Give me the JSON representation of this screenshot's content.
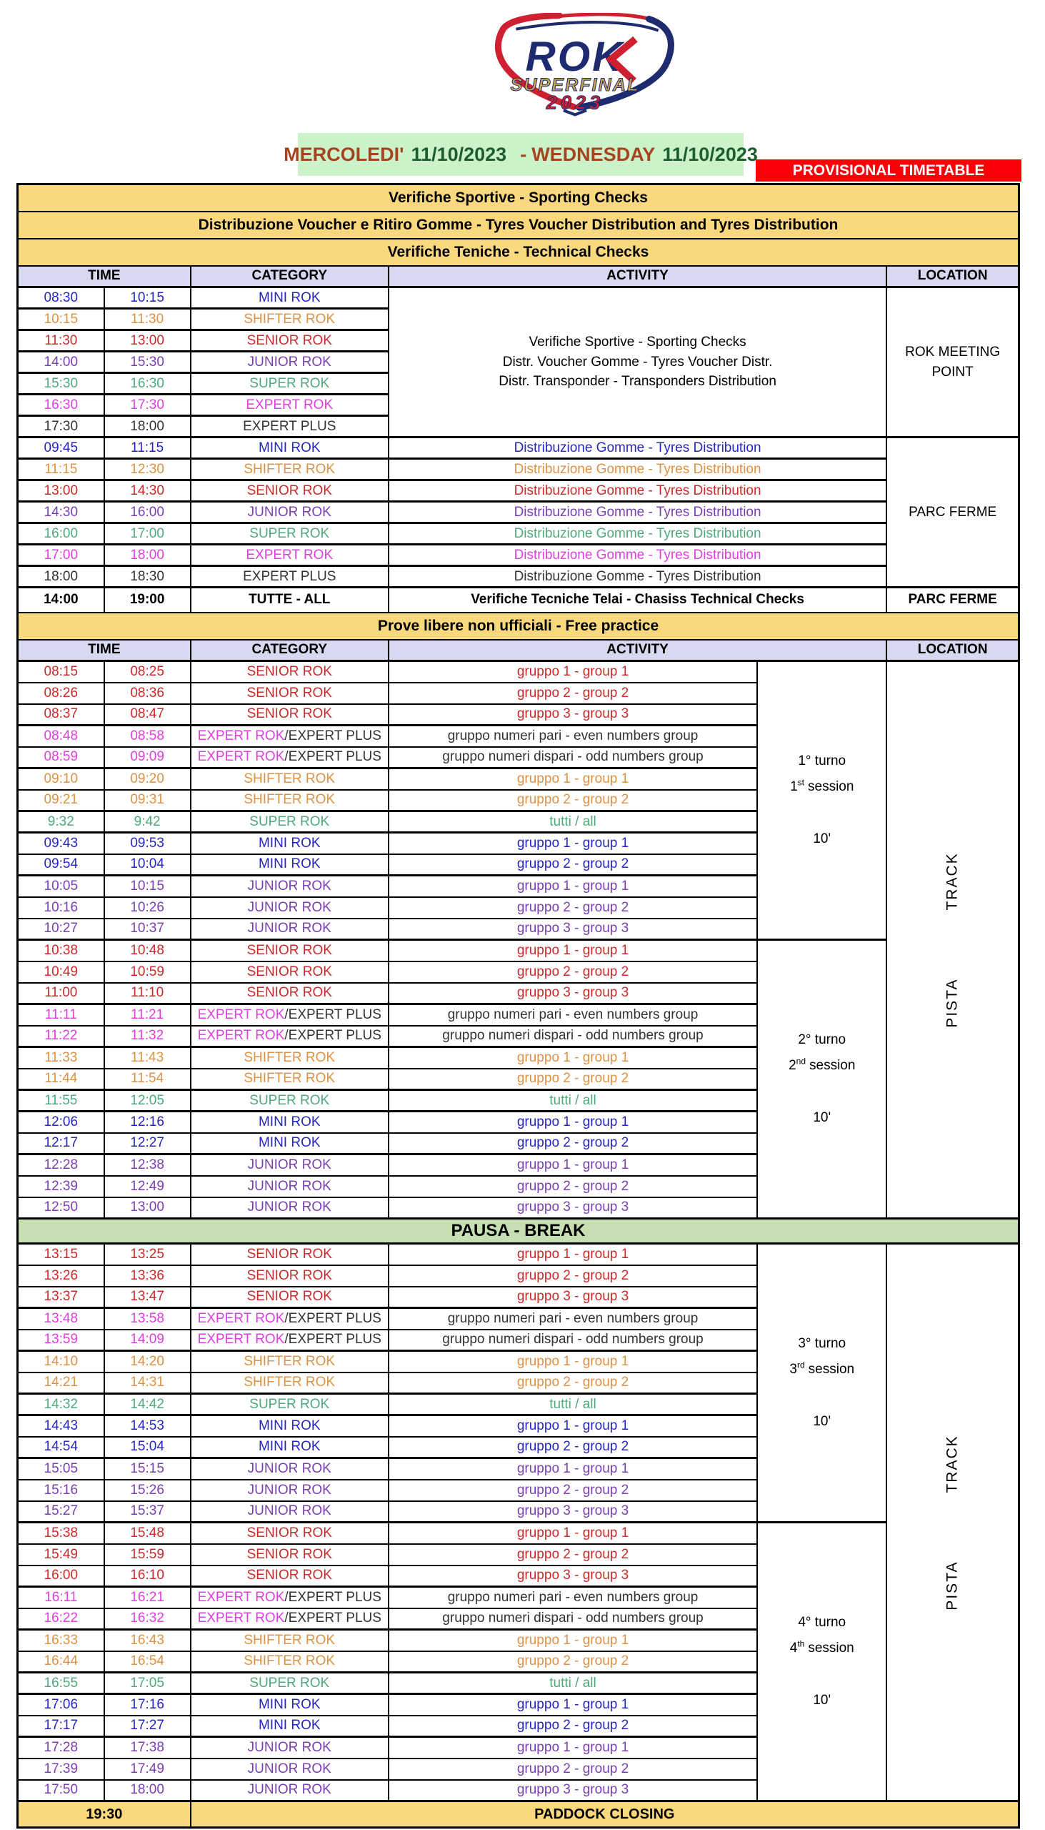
{
  "logo": {
    "rok": "ROK",
    "superfinal": "SUPERFINAL",
    "year": "2023"
  },
  "banner": {
    "it_day": "MERCOLEDI'",
    "it_date": "11/10/2023",
    "dash": "-",
    "en_day": "WEDNESDAY",
    "en_date": "11/10/2023",
    "provisional": "PROVISIONAL TIMETABLE"
  },
  "columns": {
    "time": "TIME",
    "category": "CATEGORY",
    "activity": "ACTIVITY",
    "location": "LOCATION"
  },
  "section_bars": [
    "Verifiche Sportive - Sporting Checks",
    "Distribuzione Voucher e Ritiro Gomme - Tyres Voucher Distribution and Tyres Distribution",
    "Verifiche Teniche - Technical Checks"
  ],
  "checks": {
    "rows": [
      {
        "start": "08:30",
        "end": "10:15",
        "category": "MINI ROK",
        "color": "mini"
      },
      {
        "start": "10:15",
        "end": "11:30",
        "category": "SHIFTER ROK",
        "color": "shifter"
      },
      {
        "start": "11:30",
        "end": "13:00",
        "category": "SENIOR ROK",
        "color": "senior"
      },
      {
        "start": "14:00",
        "end": "15:30",
        "category": "JUNIOR ROK",
        "color": "junior"
      },
      {
        "start": "15:30",
        "end": "16:30",
        "category": "SUPER ROK",
        "color": "super"
      },
      {
        "start": "16:30",
        "end": "17:30",
        "category": "EXPERT ROK",
        "color": "expert"
      },
      {
        "start": "17:30",
        "end": "18:00",
        "category": "EXPERT PLUS",
        "color": "expert_plus"
      }
    ],
    "activity_lines": [
      "Verifiche Sportive - Sporting Checks",
      "Distr. Voucher Gomme - Tyres Voucher Distr.",
      "Distr. Transponder - Transponders Distribution"
    ],
    "location_lines": [
      "ROK MEETING",
      "POINT"
    ]
  },
  "tyres": {
    "rows": [
      {
        "start": "09:45",
        "end": "11:15",
        "category": "MINI ROK",
        "color": "mini",
        "activity": "Distribuzione Gomme - Tyres Distribution"
      },
      {
        "start": "11:15",
        "end": "12:30",
        "category": "SHIFTER ROK",
        "color": "shifter",
        "activity": "Distribuzione Gomme - Tyres Distribution"
      },
      {
        "start": "13:00",
        "end": "14:30",
        "category": "SENIOR ROK",
        "color": "senior",
        "activity": "Distribuzione Gomme - Tyres Distribution"
      },
      {
        "start": "14:30",
        "end": "16:00",
        "category": "JUNIOR ROK",
        "color": "junior",
        "activity": "Distribuzione Gomme - Tyres Distribution"
      },
      {
        "start": "16:00",
        "end": "17:00",
        "category": "SUPER ROK",
        "color": "super",
        "activity": "Distribuzione Gomme - Tyres Distribution"
      },
      {
        "start": "17:00",
        "end": "18:00",
        "category": "EXPERT ROK",
        "color": "expert",
        "activity": "Distribuzione Gomme - Tyres Distribution"
      },
      {
        "start": "18:00",
        "end": "18:30",
        "category": "EXPERT PLUS",
        "color": "expert_plus",
        "activity": "Distribuzione Gomme - Tyres Distribution"
      }
    ],
    "location": "PARC FERME"
  },
  "all_row": {
    "start": "14:00",
    "end": "19:00",
    "category": "TUTTE - ALL",
    "activity": "Verifiche Tecniche Telai - Chasiss Technical Checks",
    "location": "PARC FERME"
  },
  "free_practice": {
    "header": "Prove libere non ufficiali - Free practice",
    "pausa": "PAUSA - BREAK",
    "track": {
      "pista": "PISTA",
      "track": "TRACK"
    },
    "sessions": [
      {
        "turno": "1° turno",
        "ordinal": "1",
        "suffix": "st",
        "word": "session",
        "duration": "10'",
        "rows": [
          {
            "start": "08:15",
            "end": "08:25",
            "category": "SENIOR ROK",
            "color": "senior",
            "activity": "gruppo 1 - group 1"
          },
          {
            "start": "08:26",
            "end": "08:36",
            "category": "SENIOR ROK",
            "color": "senior",
            "activity": "gruppo 2 - group 2"
          },
          {
            "start": "08:37",
            "end": "08:47",
            "category": "SENIOR ROK",
            "color": "senior",
            "activity": "gruppo 3 - group 3"
          },
          {
            "start": "08:48",
            "end": "08:58",
            "category": "EXPERT ROK",
            "category2": "/EXPERT PLUS",
            "color": "expert",
            "activity": "gruppo numeri pari - even numbers group",
            "activity_color": "expert_plus"
          },
          {
            "start": "08:59",
            "end": "09:09",
            "category": "EXPERT ROK",
            "category2": "/EXPERT PLUS",
            "color": "expert",
            "activity": "gruppo numeri dispari - odd numbers group",
            "activity_color": "expert_plus"
          },
          {
            "start": "09:10",
            "end": "09:20",
            "category": "SHIFTER ROK",
            "color": "shifter",
            "activity": "gruppo 1 - group 1"
          },
          {
            "start": "09:21",
            "end": "09:31",
            "category": "SHIFTER ROK",
            "color": "shifter",
            "activity": "gruppo 2 - group 2"
          },
          {
            "start": "9:32",
            "end": "9:42",
            "category": "SUPER ROK",
            "color": "super",
            "activity": "tutti / all"
          },
          {
            "start": "09:43",
            "end": "09:53",
            "category": "MINI ROK",
            "color": "mini",
            "activity": "gruppo 1 - group 1"
          },
          {
            "start": "09:54",
            "end": "10:04",
            "category": "MINI ROK",
            "color": "mini",
            "activity": "gruppo 2 - group 2"
          },
          {
            "start": "10:05",
            "end": "10:15",
            "category": "JUNIOR ROK",
            "color": "junior",
            "activity": "gruppo 1 - group 1"
          },
          {
            "start": "10:16",
            "end": "10:26",
            "category": "JUNIOR ROK",
            "color": "junior",
            "activity": "gruppo 2 - group 2"
          },
          {
            "start": "10:27",
            "end": "10:37",
            "category": "JUNIOR ROK",
            "color": "junior",
            "activity": "gruppo 3 - group 3"
          }
        ]
      },
      {
        "turno": "2° turno",
        "ordinal": "2",
        "suffix": "nd",
        "word": "session",
        "duration": "10'",
        "rows": [
          {
            "start": "10:38",
            "end": "10:48",
            "category": "SENIOR ROK",
            "color": "senior",
            "activity": "gruppo 1 - group 1"
          },
          {
            "start": "10:49",
            "end": "10:59",
            "category": "SENIOR ROK",
            "color": "senior",
            "activity": "gruppo 2 - group 2"
          },
          {
            "start": "11:00",
            "end": "11:10",
            "category": "SENIOR ROK",
            "color": "senior",
            "activity": "gruppo 3 - group 3"
          },
          {
            "start": "11:11",
            "end": "11:21",
            "category": "EXPERT ROK",
            "category2": "/EXPERT PLUS",
            "color": "expert",
            "activity": "gruppo numeri pari - even numbers group",
            "activity_color": "expert_plus"
          },
          {
            "start": "11:22",
            "end": "11:32",
            "category": "EXPERT ROK",
            "category2": "/EXPERT PLUS",
            "color": "expert",
            "activity": "gruppo numeri dispari - odd numbers group",
            "activity_color": "expert_plus"
          },
          {
            "start": "11:33",
            "end": "11:43",
            "category": "SHIFTER ROK",
            "color": "shifter",
            "activity": "gruppo 1 - group 1"
          },
          {
            "start": "11:44",
            "end": "11:54",
            "category": "SHIFTER ROK",
            "color": "shifter",
            "activity": "gruppo 2 - group 2"
          },
          {
            "start": "11:55",
            "end": "12:05",
            "category": "SUPER ROK",
            "color": "super",
            "activity": "tutti / all"
          },
          {
            "start": "12:06",
            "end": "12:16",
            "category": "MINI ROK",
            "color": "mini",
            "activity": "gruppo 1 - group 1"
          },
          {
            "start": "12:17",
            "end": "12:27",
            "category": "MINI ROK",
            "color": "mini",
            "activity": "gruppo 2 - group 2"
          },
          {
            "start": "12:28",
            "end": "12:38",
            "category": "JUNIOR ROK",
            "color": "junior",
            "activity": "gruppo 1 - group 1"
          },
          {
            "start": "12:39",
            "end": "12:49",
            "category": "JUNIOR ROK",
            "color": "junior",
            "activity": "gruppo 2 - group 2"
          },
          {
            "start": "12:50",
            "end": "13:00",
            "category": "JUNIOR ROK",
            "color": "junior",
            "activity": "gruppo 3 - group 3"
          }
        ]
      },
      {
        "turno": "3° turno",
        "ordinal": "3",
        "suffix": "rd",
        "word": "session",
        "duration": "10'",
        "rows": [
          {
            "start": "13:15",
            "end": "13:25",
            "category": "SENIOR ROK",
            "color": "senior",
            "activity": "gruppo 1 - group 1"
          },
          {
            "start": "13:26",
            "end": "13:36",
            "category": "SENIOR ROK",
            "color": "senior",
            "activity": "gruppo 2 - group 2"
          },
          {
            "start": "13:37",
            "end": "13:47",
            "category": "SENIOR ROK",
            "color": "senior",
            "activity": "gruppo 3 - group 3"
          },
          {
            "start": "13:48",
            "end": "13:58",
            "category": "EXPERT ROK",
            "category2": "/EXPERT PLUS",
            "color": "expert",
            "activity": "gruppo numeri pari - even numbers group",
            "activity_color": "expert_plus"
          },
          {
            "start": "13:59",
            "end": "14:09",
            "category": "EXPERT ROK",
            "category2": "/EXPERT PLUS",
            "color": "expert",
            "activity": "gruppo numeri dispari - odd numbers group",
            "activity_color": "expert_plus"
          },
          {
            "start": "14:10",
            "end": "14:20",
            "category": "SHIFTER ROK",
            "color": "shifter",
            "activity": "gruppo 1 - group 1"
          },
          {
            "start": "14:21",
            "end": "14:31",
            "category": "SHIFTER ROK",
            "color": "shifter",
            "activity": "gruppo 2 - group 2"
          },
          {
            "start": "14:32",
            "end": "14:42",
            "category": "SUPER ROK",
            "color": "super",
            "activity": "tutti / all"
          },
          {
            "start": "14:43",
            "end": "14:53",
            "category": "MINI ROK",
            "color": "mini",
            "activity": "gruppo 1 - group 1"
          },
          {
            "start": "14:54",
            "end": "15:04",
            "category": "MINI ROK",
            "color": "mini",
            "activity": "gruppo 2 - group 2"
          },
          {
            "start": "15:05",
            "end": "15:15",
            "category": "JUNIOR ROK",
            "color": "junior",
            "activity": "gruppo 1 - group 1"
          },
          {
            "start": "15:16",
            "end": "15:26",
            "category": "JUNIOR ROK",
            "color": "junior",
            "activity": "gruppo 2 - group 2"
          },
          {
            "start": "15:27",
            "end": "15:37",
            "category": "JUNIOR ROK",
            "color": "junior",
            "activity": "gruppo 3 - group 3"
          }
        ]
      },
      {
        "turno": "4° turno",
        "ordinal": "4",
        "suffix": "th",
        "word": "session",
        "duration": "10'",
        "rows": [
          {
            "start": "15:38",
            "end": "15:48",
            "category": "SENIOR ROK",
            "color": "senior",
            "activity": "gruppo 1 - group 1"
          },
          {
            "start": "15:49",
            "end": "15:59",
            "category": "SENIOR ROK",
            "color": "senior",
            "activity": "gruppo 2 - group 2"
          },
          {
            "start": "16:00",
            "end": "16:10",
            "category": "SENIOR ROK",
            "color": "senior",
            "activity": "gruppo 3 - group 3"
          },
          {
            "start": "16:11",
            "end": "16:21",
            "category": "EXPERT ROK",
            "category2": "/EXPERT PLUS",
            "color": "expert",
            "activity": "gruppo numeri pari - even numbers group",
            "activity_color": "expert_plus"
          },
          {
            "start": "16:22",
            "end": "16:32",
            "category": "EXPERT ROK",
            "category2": "/EXPERT PLUS",
            "color": "expert",
            "activity": "gruppo numeri dispari - odd numbers group",
            "activity_color": "expert_plus"
          },
          {
            "start": "16:33",
            "end": "16:43",
            "category": "SHIFTER ROK",
            "color": "shifter",
            "activity": "gruppo 1 - group 1"
          },
          {
            "start": "16:44",
            "end": "16:54",
            "category": "SHIFTER ROK",
            "color": "shifter",
            "activity": "gruppo 2 - group 2"
          },
          {
            "start": "16:55",
            "end": "17:05",
            "category": "SUPER ROK",
            "color": "super",
            "activity": "tutti / all"
          },
          {
            "start": "17:06",
            "end": "17:16",
            "category": "MINI ROK",
            "color": "mini",
            "activity": "gruppo 1 - group 1"
          },
          {
            "start": "17:17",
            "end": "17:27",
            "category": "MINI ROK",
            "color": "mini",
            "activity": "gruppo 2 - group 2"
          },
          {
            "start": "17:28",
            "end": "17:38",
            "category": "JUNIOR ROK",
            "color": "junior",
            "activity": "gruppo 1 - group 1"
          },
          {
            "start": "17:39",
            "end": "17:49",
            "category": "JUNIOR ROK",
            "color": "junior",
            "activity": "gruppo 2 - group 2"
          },
          {
            "start": "17:50",
            "end": "18:00",
            "category": "JUNIOR ROK",
            "color": "junior",
            "activity": "gruppo 3 - group 3"
          }
        ]
      }
    ]
  },
  "paddock": {
    "time": "19:30",
    "label": "PADDOCK CLOSING"
  },
  "colors": {
    "mini": "#2626C4",
    "shifter": "#DD9245",
    "senior": "#CC2A2A",
    "junior": "#7A3FB0",
    "super": "#4EA97B",
    "expert": "#DF3FDF",
    "expert_plus": "#333333",
    "tan": "#FAD87E",
    "lavender": "#D8D8F0",
    "pausa_green": "#C5DEB2",
    "banner_green": "#CCF2CA",
    "banner_red": "#FB0006",
    "date_green": "#1D5E30",
    "date_rust": "#A5441F",
    "navy": "#1E2B6E",
    "logo_red": "#CE2030",
    "gold": "#C9A355"
  }
}
